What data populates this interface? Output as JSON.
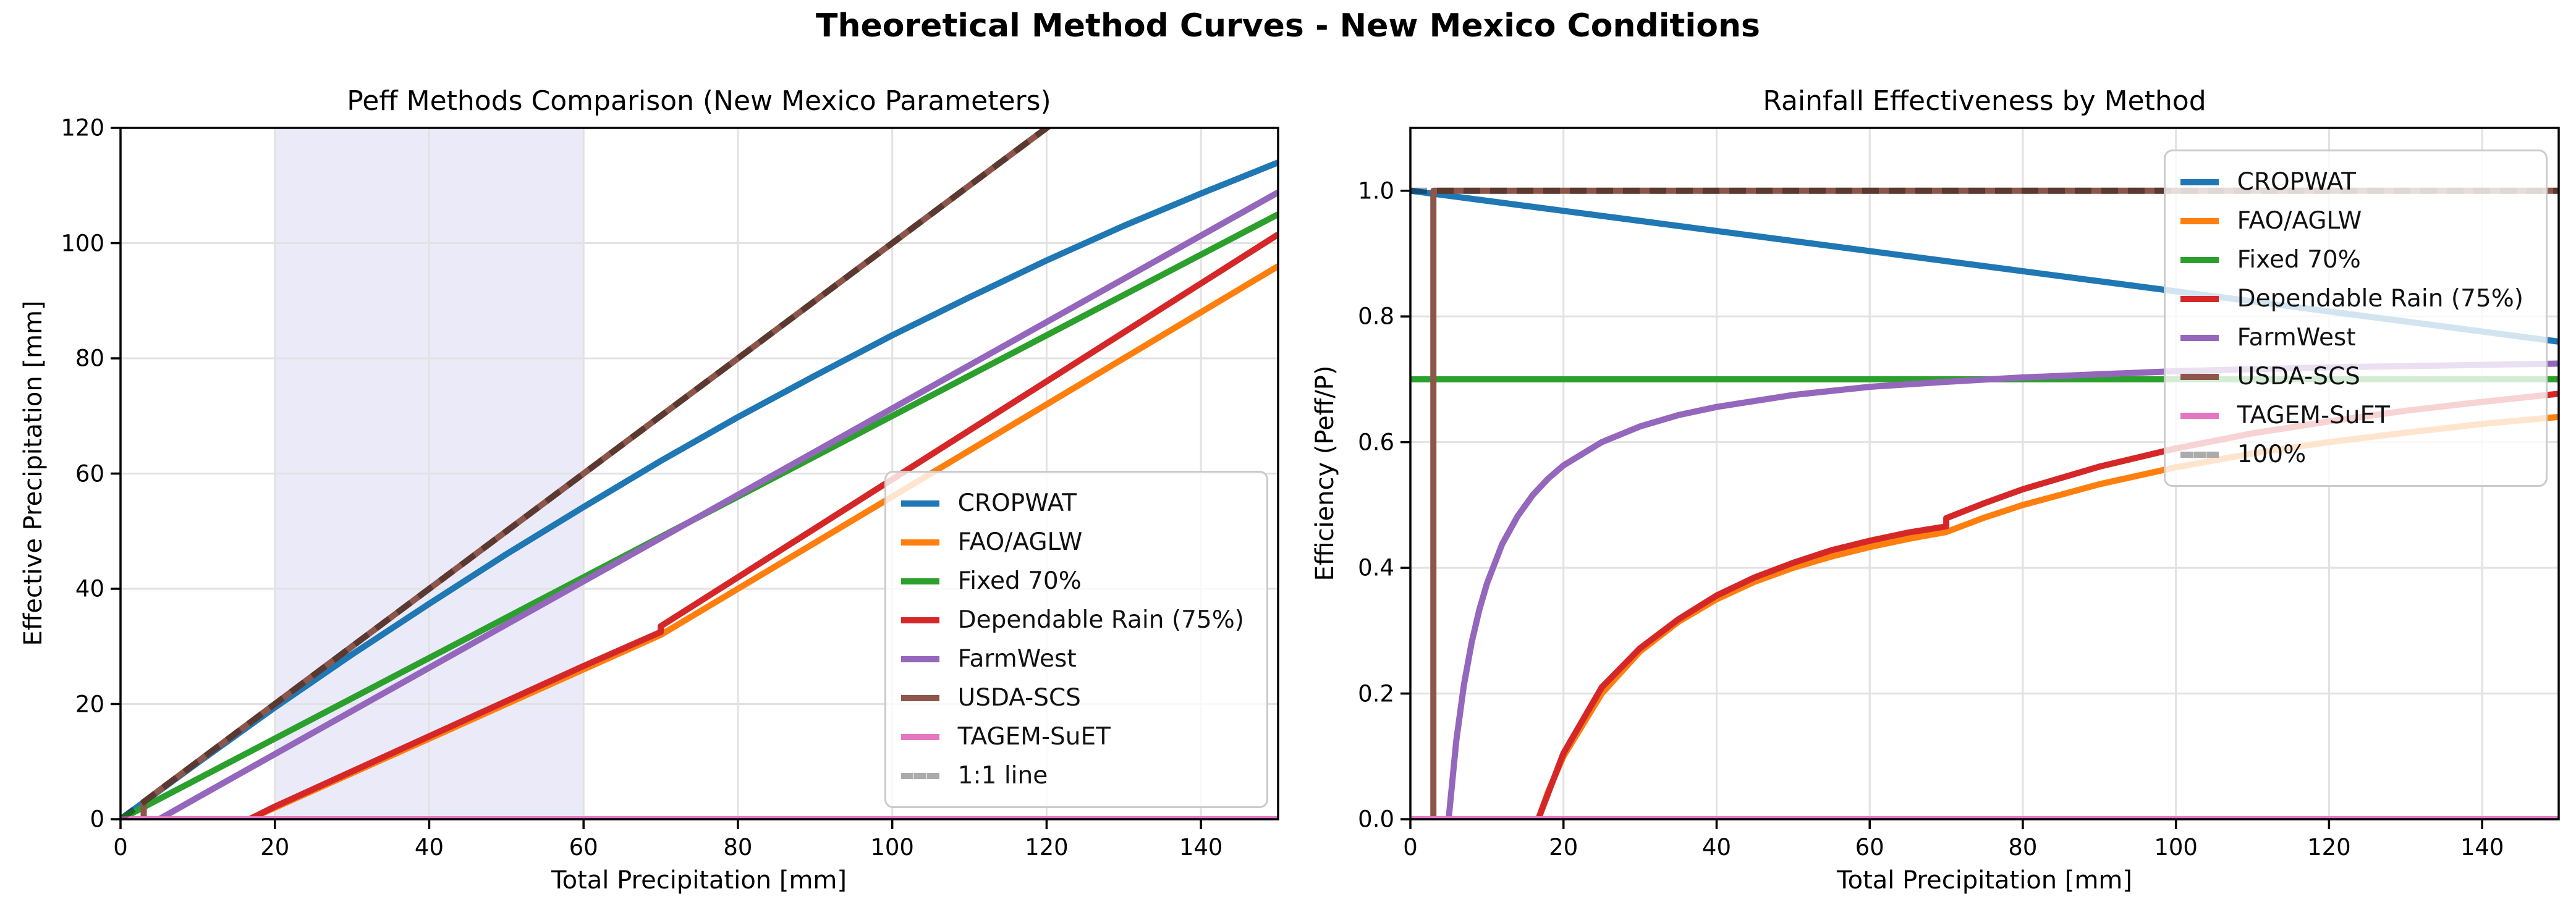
{
  "suptitle": "Theoretical Method Curves - New Mexico Conditions",
  "palette": {
    "blue": "#1f77b4",
    "orange": "#ff7f0e",
    "green": "#2ca02c",
    "red": "#d62728",
    "purple": "#9467bd",
    "brown": "#8c564b",
    "pink": "#e377c2",
    "dash_gray": "#ababab",
    "grid": "#e2e2e2",
    "band": "#8888dd"
  },
  "chart_data": [
    {
      "type": "line",
      "title": "Peff Methods Comparison (New Mexico Parameters)",
      "xlabel": "Total Precipitation [mm]",
      "ylabel": "Effective Precipitation [mm]",
      "xlim": [
        0,
        150
      ],
      "ylim": [
        0,
        120
      ],
      "grid": true,
      "xticks": [
        0,
        20,
        40,
        60,
        80,
        100,
        120,
        140
      ],
      "xtick_labels": [
        "0",
        "20",
        "40",
        "60",
        "80",
        "100",
        "120",
        "140"
      ],
      "yticks": [
        0,
        20,
        40,
        60,
        80,
        100,
        120
      ],
      "ytick_labels": [
        "0",
        "20",
        "40",
        "60",
        "80",
        "100",
        "120"
      ],
      "shaded_band": {
        "x0": 20,
        "x1": 60,
        "color": "#8888dd",
        "opacity": 0.18
      },
      "legend_loc": "lower right",
      "series": [
        {
          "name": "CROPWAT",
          "color": "#1f77b4",
          "dash": false,
          "points": [
            [
              0,
              0
            ],
            [
              10,
              9.8
            ],
            [
              20,
              19.4
            ],
            [
              30,
              28.6
            ],
            [
              40,
              37.4
            ],
            [
              50,
              46.0
            ],
            [
              60,
              54.2
            ],
            [
              70,
              62.2
            ],
            [
              80,
              69.8
            ],
            [
              90,
              77.0
            ],
            [
              100,
              84.0
            ],
            [
              110,
              90.6
            ],
            [
              120,
              97.0
            ],
            [
              130,
              103.0
            ],
            [
              140,
              108.6
            ],
            [
              150,
              114.0
            ]
          ]
        },
        {
          "name": "FAO/AGLW",
          "color": "#ff7f0e",
          "dash": false,
          "points": [
            [
              0,
              0
            ],
            [
              16.7,
              0
            ],
            [
              20,
              2.0
            ],
            [
              30,
              8.0
            ],
            [
              40,
              14.0
            ],
            [
              50,
              20.0
            ],
            [
              60,
              26.0
            ],
            [
              70,
              32.0
            ],
            [
              80,
              40.0
            ],
            [
              90,
              48.0
            ],
            [
              100,
              56.0
            ],
            [
              110,
              64.0
            ],
            [
              120,
              72.0
            ],
            [
              130,
              80.0
            ],
            [
              140,
              88.0
            ],
            [
              150,
              96.0
            ]
          ]
        },
        {
          "name": "Fixed 70%",
          "color": "#2ca02c",
          "dash": false,
          "points": [
            [
              0,
              0
            ],
            [
              150,
              105
            ]
          ]
        },
        {
          "name": "Dependable Rain (75%)",
          "color": "#d62728",
          "dash": false,
          "points": [
            [
              0,
              0
            ],
            [
              16.7,
              0
            ],
            [
              20,
              2.2
            ],
            [
              30,
              8.3
            ],
            [
              40,
              14.4
            ],
            [
              50,
              20.5
            ],
            [
              60,
              26.6
            ],
            [
              70,
              32.5
            ],
            [
              70,
              33.5
            ],
            [
              80,
              42.0
            ],
            [
              90,
              50.5
            ],
            [
              100,
              59.0
            ],
            [
              110,
              67.5
            ],
            [
              120,
              76.0
            ],
            [
              130,
              84.5
            ],
            [
              140,
              93.0
            ],
            [
              150,
              101.5
            ]
          ]
        },
        {
          "name": "FarmWest",
          "color": "#9467bd",
          "dash": false,
          "points": [
            [
              0,
              0
            ],
            [
              5,
              0
            ],
            [
              10,
              3.8
            ],
            [
              20,
              11.3
            ],
            [
              30,
              18.8
            ],
            [
              40,
              26.3
            ],
            [
              50,
              33.8
            ],
            [
              60,
              41.3
            ],
            [
              70,
              48.8
            ],
            [
              80,
              56.3
            ],
            [
              90,
              63.8
            ],
            [
              100,
              71.3
            ],
            [
              110,
              78.8
            ],
            [
              120,
              86.3
            ],
            [
              130,
              93.8
            ],
            [
              140,
              101.3
            ],
            [
              150,
              108.8
            ]
          ]
        },
        {
          "name": "USDA-SCS",
          "color": "#8c564b",
          "dash": false,
          "points": [
            [
              0,
              0
            ],
            [
              3,
              0
            ],
            [
              3,
              3
            ],
            [
              122,
              122
            ]
          ]
        },
        {
          "name": "TAGEM-SuET",
          "color": "#e377c2",
          "dash": false,
          "points": [
            [
              0,
              0
            ],
            [
              150,
              0
            ]
          ]
        },
        {
          "name": "1:1 line",
          "color": "#000000",
          "dash": true,
          "opacity": 0.35,
          "points": [
            [
              0,
              0
            ],
            [
              122,
              122
            ]
          ]
        }
      ]
    },
    {
      "type": "line",
      "title": "Rainfall Effectiveness by Method",
      "xlabel": "Total Precipitation [mm]",
      "ylabel": "Efficiency (Peff/P)",
      "xlim": [
        0,
        150
      ],
      "ylim": [
        0,
        1.1
      ],
      "grid": true,
      "xticks": [
        0,
        20,
        40,
        60,
        80,
        100,
        120,
        140
      ],
      "xtick_labels": [
        "0",
        "20",
        "40",
        "60",
        "80",
        "100",
        "120",
        "140"
      ],
      "yticks": [
        0,
        0.2,
        0.4,
        0.6,
        0.8,
        1.0
      ],
      "ytick_labels": [
        "0.0",
        "0.2",
        "0.4",
        "0.6",
        "0.8",
        "1.0"
      ],
      "shaded_band": null,
      "legend_loc": "upper right",
      "series": [
        {
          "name": "CROPWAT",
          "color": "#1f77b4",
          "dash": false,
          "points": [
            [
              0,
              1.0
            ],
            [
              150,
              0.76
            ]
          ]
        },
        {
          "name": "FAO/AGLW",
          "color": "#ff7f0e",
          "dash": false,
          "points": [
            [
              16.7,
              0
            ],
            [
              18,
              0.044
            ],
            [
              20,
              0.1
            ],
            [
              25,
              0.2
            ],
            [
              30,
              0.267
            ],
            [
              35,
              0.314
            ],
            [
              40,
              0.35
            ],
            [
              45,
              0.378
            ],
            [
              50,
              0.4
            ],
            [
              55,
              0.418
            ],
            [
              60,
              0.433
            ],
            [
              65,
              0.446
            ],
            [
              70,
              0.457
            ],
            [
              75,
              0.48
            ],
            [
              80,
              0.5
            ],
            [
              90,
              0.533
            ],
            [
              100,
              0.56
            ],
            [
              110,
              0.582
            ],
            [
              120,
              0.6
            ],
            [
              130,
              0.615
            ],
            [
              140,
              0.629
            ],
            [
              150,
              0.64
            ]
          ]
        },
        {
          "name": "Fixed 70%",
          "color": "#2ca02c",
          "dash": false,
          "points": [
            [
              0,
              0.7
            ],
            [
              150,
              0.7
            ]
          ]
        },
        {
          "name": "Dependable Rain (75%)",
          "color": "#d62728",
          "dash": false,
          "points": [
            [
              16.7,
              0
            ],
            [
              20,
              0.105
            ],
            [
              25,
              0.21
            ],
            [
              30,
              0.272
            ],
            [
              35,
              0.318
            ],
            [
              40,
              0.356
            ],
            [
              45,
              0.385
            ],
            [
              50,
              0.408
            ],
            [
              55,
              0.428
            ],
            [
              60,
              0.443
            ],
            [
              65,
              0.456
            ],
            [
              70,
              0.466
            ],
            [
              70,
              0.479
            ],
            [
              75,
              0.503
            ],
            [
              80,
              0.525
            ],
            [
              90,
              0.561
            ],
            [
              100,
              0.59
            ],
            [
              110,
              0.614
            ],
            [
              120,
              0.633
            ],
            [
              130,
              0.65
            ],
            [
              140,
              0.664
            ],
            [
              150,
              0.677
            ]
          ]
        },
        {
          "name": "FarmWest",
          "color": "#9467bd",
          "dash": false,
          "points": [
            [
              5,
              0
            ],
            [
              6,
              0.125
            ],
            [
              7,
              0.214
            ],
            [
              8,
              0.281
            ],
            [
              9,
              0.333
            ],
            [
              10,
              0.375
            ],
            [
              12,
              0.438
            ],
            [
              14,
              0.482
            ],
            [
              16,
              0.516
            ],
            [
              18,
              0.542
            ],
            [
              20,
              0.563
            ],
            [
              25,
              0.6
            ],
            [
              30,
              0.625
            ],
            [
              35,
              0.643
            ],
            [
              40,
              0.656
            ],
            [
              50,
              0.675
            ],
            [
              60,
              0.688
            ],
            [
              70,
              0.696
            ],
            [
              80,
              0.703
            ],
            [
              90,
              0.708
            ],
            [
              100,
              0.713
            ],
            [
              120,
              0.719
            ],
            [
              150,
              0.725
            ]
          ]
        },
        {
          "name": "USDA-SCS",
          "color": "#8c564b",
          "dash": false,
          "points": [
            [
              0,
              0
            ],
            [
              3,
              0
            ],
            [
              3,
              1.0
            ],
            [
              150,
              1.0
            ]
          ]
        },
        {
          "name": "TAGEM-SuET",
          "color": "#e377c2",
          "dash": false,
          "points": [
            [
              0,
              0
            ],
            [
              150,
              0
            ]
          ]
        },
        {
          "name": "100%",
          "color": "#000000",
          "dash": true,
          "opacity": 0.35,
          "points": [
            [
              0,
              1.0
            ],
            [
              150,
              1.0
            ]
          ]
        }
      ]
    }
  ]
}
